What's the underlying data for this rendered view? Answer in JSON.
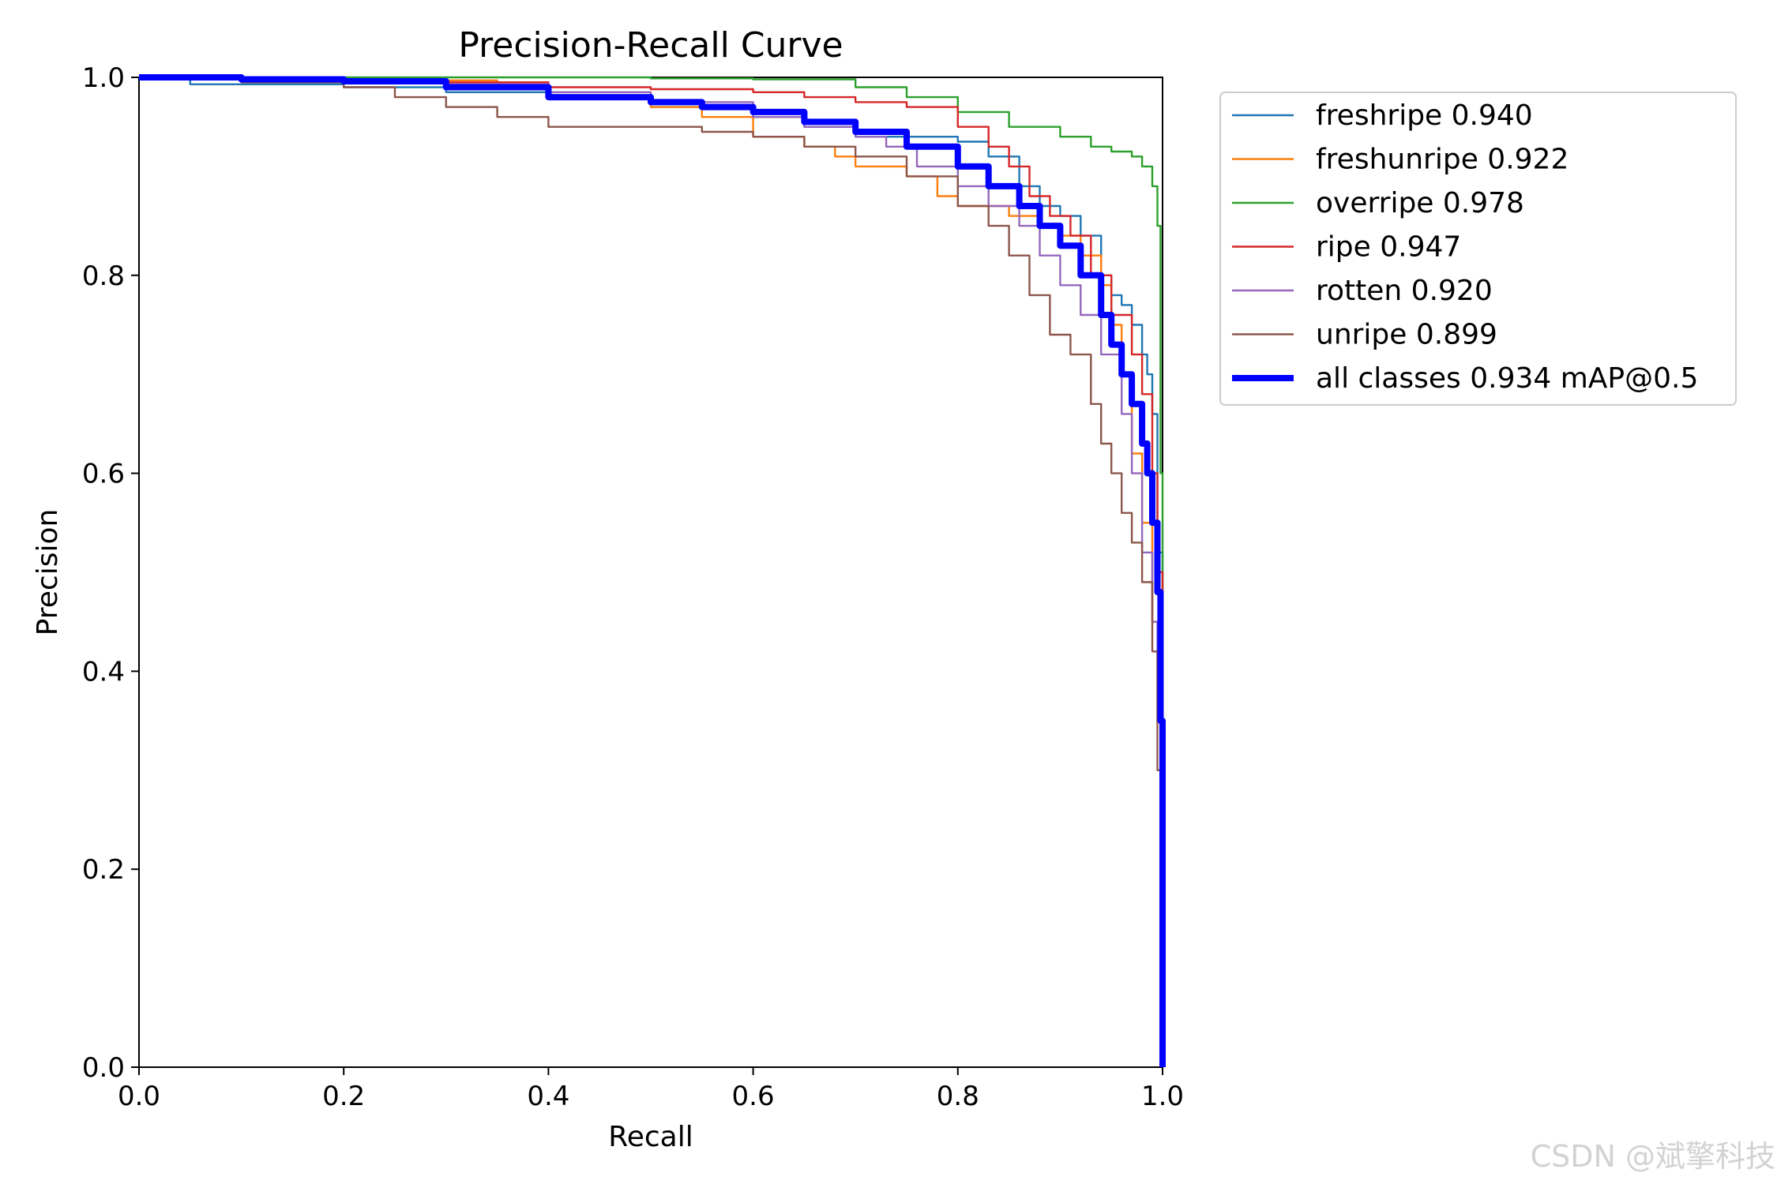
{
  "chart_data": {
    "type": "line",
    "title": "Precision-Recall Curve",
    "xlabel": "Recall",
    "ylabel": "Precision",
    "xlim": [
      0,
      1
    ],
    "ylim": [
      0,
      1
    ],
    "xticks": [
      "0.0",
      "0.2",
      "0.4",
      "0.6",
      "0.8",
      "1.0"
    ],
    "yticks": [
      "0.0",
      "0.2",
      "0.4",
      "0.6",
      "0.8",
      "1.0"
    ],
    "grid": false,
    "legend_position": "outside-top-right",
    "series": [
      {
        "name": "freshripe 0.940",
        "color": "#1f77b4",
        "width": "thin",
        "x": [
          0,
          0.05,
          0.1,
          0.2,
          0.3,
          0.4,
          0.5,
          0.6,
          0.65,
          0.7,
          0.75,
          0.8,
          0.83,
          0.86,
          0.88,
          0.9,
          0.92,
          0.94,
          0.95,
          0.96,
          0.97,
          0.98,
          0.985,
          0.99,
          0.995,
          1.0,
          1.0
        ],
        "y": [
          1.0,
          0.993,
          0.993,
          0.99,
          0.985,
          0.98,
          0.97,
          0.96,
          0.95,
          0.94,
          0.94,
          0.935,
          0.92,
          0.89,
          0.87,
          0.86,
          0.84,
          0.8,
          0.78,
          0.77,
          0.75,
          0.72,
          0.7,
          0.66,
          0.52,
          0.3,
          0.0
        ]
      },
      {
        "name": "freshunripe 0.922",
        "color": "#ff7f0e",
        "width": "thin",
        "x": [
          0,
          0.1,
          0.2,
          0.35,
          0.4,
          0.5,
          0.55,
          0.6,
          0.65,
          0.68,
          0.7,
          0.75,
          0.78,
          0.8,
          0.85,
          0.88,
          0.9,
          0.92,
          0.94,
          0.95,
          0.96,
          0.97,
          0.98,
          0.99,
          1.0,
          1.0
        ],
        "y": [
          1.0,
          0.998,
          0.997,
          0.995,
          0.98,
          0.97,
          0.96,
          0.94,
          0.93,
          0.92,
          0.91,
          0.9,
          0.88,
          0.87,
          0.86,
          0.85,
          0.84,
          0.82,
          0.79,
          0.75,
          0.7,
          0.62,
          0.55,
          0.45,
          0.3,
          0.0
        ]
      },
      {
        "name": "overripe 0.978",
        "color": "#2ca02c",
        "width": "thin",
        "x": [
          0,
          0.3,
          0.4,
          0.5,
          0.6,
          0.7,
          0.75,
          0.8,
          0.85,
          0.9,
          0.93,
          0.95,
          0.97,
          0.98,
          0.99,
          0.995,
          0.998,
          1.0,
          1.0
        ],
        "y": [
          1.0,
          1.0,
          1.0,
          0.999,
          0.998,
          0.99,
          0.98,
          0.965,
          0.95,
          0.94,
          0.93,
          0.925,
          0.92,
          0.91,
          0.89,
          0.85,
          0.6,
          0.35,
          0.0
        ]
      },
      {
        "name": "ripe 0.947",
        "color": "#d62728",
        "width": "thin",
        "x": [
          0,
          0.2,
          0.3,
          0.4,
          0.5,
          0.6,
          0.65,
          0.7,
          0.75,
          0.8,
          0.83,
          0.85,
          0.87,
          0.89,
          0.91,
          0.93,
          0.95,
          0.97,
          0.98,
          0.99,
          0.995,
          1.0,
          1.0
        ],
        "y": [
          1.0,
          0.998,
          0.995,
          0.99,
          0.988,
          0.985,
          0.98,
          0.975,
          0.97,
          0.95,
          0.93,
          0.91,
          0.88,
          0.86,
          0.84,
          0.8,
          0.76,
          0.72,
          0.68,
          0.6,
          0.5,
          0.35,
          0.0
        ]
      },
      {
        "name": "rotten 0.920",
        "color": "#9467bd",
        "width": "thin",
        "x": [
          0,
          0.2,
          0.3,
          0.4,
          0.5,
          0.6,
          0.65,
          0.7,
          0.73,
          0.76,
          0.8,
          0.83,
          0.86,
          0.88,
          0.9,
          0.92,
          0.94,
          0.96,
          0.97,
          0.98,
          0.99,
          0.995,
          1.0,
          1.0
        ],
        "y": [
          1.0,
          0.997,
          0.993,
          0.985,
          0.975,
          0.96,
          0.95,
          0.94,
          0.93,
          0.91,
          0.89,
          0.87,
          0.85,
          0.82,
          0.79,
          0.76,
          0.72,
          0.66,
          0.6,
          0.52,
          0.45,
          0.35,
          0.1,
          0.0
        ]
      },
      {
        "name": "unripe 0.899",
        "color": "#8c564b",
        "width": "thin",
        "x": [
          0,
          0.1,
          0.2,
          0.25,
          0.3,
          0.35,
          0.4,
          0.5,
          0.55,
          0.6,
          0.65,
          0.7,
          0.75,
          0.8,
          0.83,
          0.85,
          0.87,
          0.89,
          0.91,
          0.93,
          0.94,
          0.95,
          0.96,
          0.97,
          0.98,
          0.99,
          0.995,
          1.0,
          1.0
        ],
        "y": [
          1.0,
          0.995,
          0.99,
          0.98,
          0.97,
          0.96,
          0.95,
          0.95,
          0.945,
          0.94,
          0.93,
          0.92,
          0.9,
          0.87,
          0.85,
          0.82,
          0.78,
          0.74,
          0.72,
          0.67,
          0.63,
          0.6,
          0.56,
          0.53,
          0.49,
          0.42,
          0.3,
          0.12,
          0.0
        ]
      },
      {
        "name": "all classes 0.934 mAP@0.5",
        "color": "#0000ff",
        "width": "thick",
        "x": [
          0,
          0.1,
          0.2,
          0.3,
          0.4,
          0.5,
          0.55,
          0.6,
          0.65,
          0.7,
          0.75,
          0.8,
          0.83,
          0.86,
          0.88,
          0.9,
          0.92,
          0.94,
          0.95,
          0.96,
          0.97,
          0.98,
          0.985,
          0.99,
          0.995,
          0.998,
          1.0,
          1.0
        ],
        "y": [
          1.0,
          0.998,
          0.996,
          0.99,
          0.98,
          0.975,
          0.97,
          0.965,
          0.955,
          0.945,
          0.93,
          0.91,
          0.89,
          0.87,
          0.85,
          0.83,
          0.8,
          0.76,
          0.73,
          0.7,
          0.67,
          0.63,
          0.6,
          0.55,
          0.48,
          0.35,
          0.15,
          0.0
        ]
      }
    ]
  },
  "watermark": "CSDN @斌擎科技"
}
